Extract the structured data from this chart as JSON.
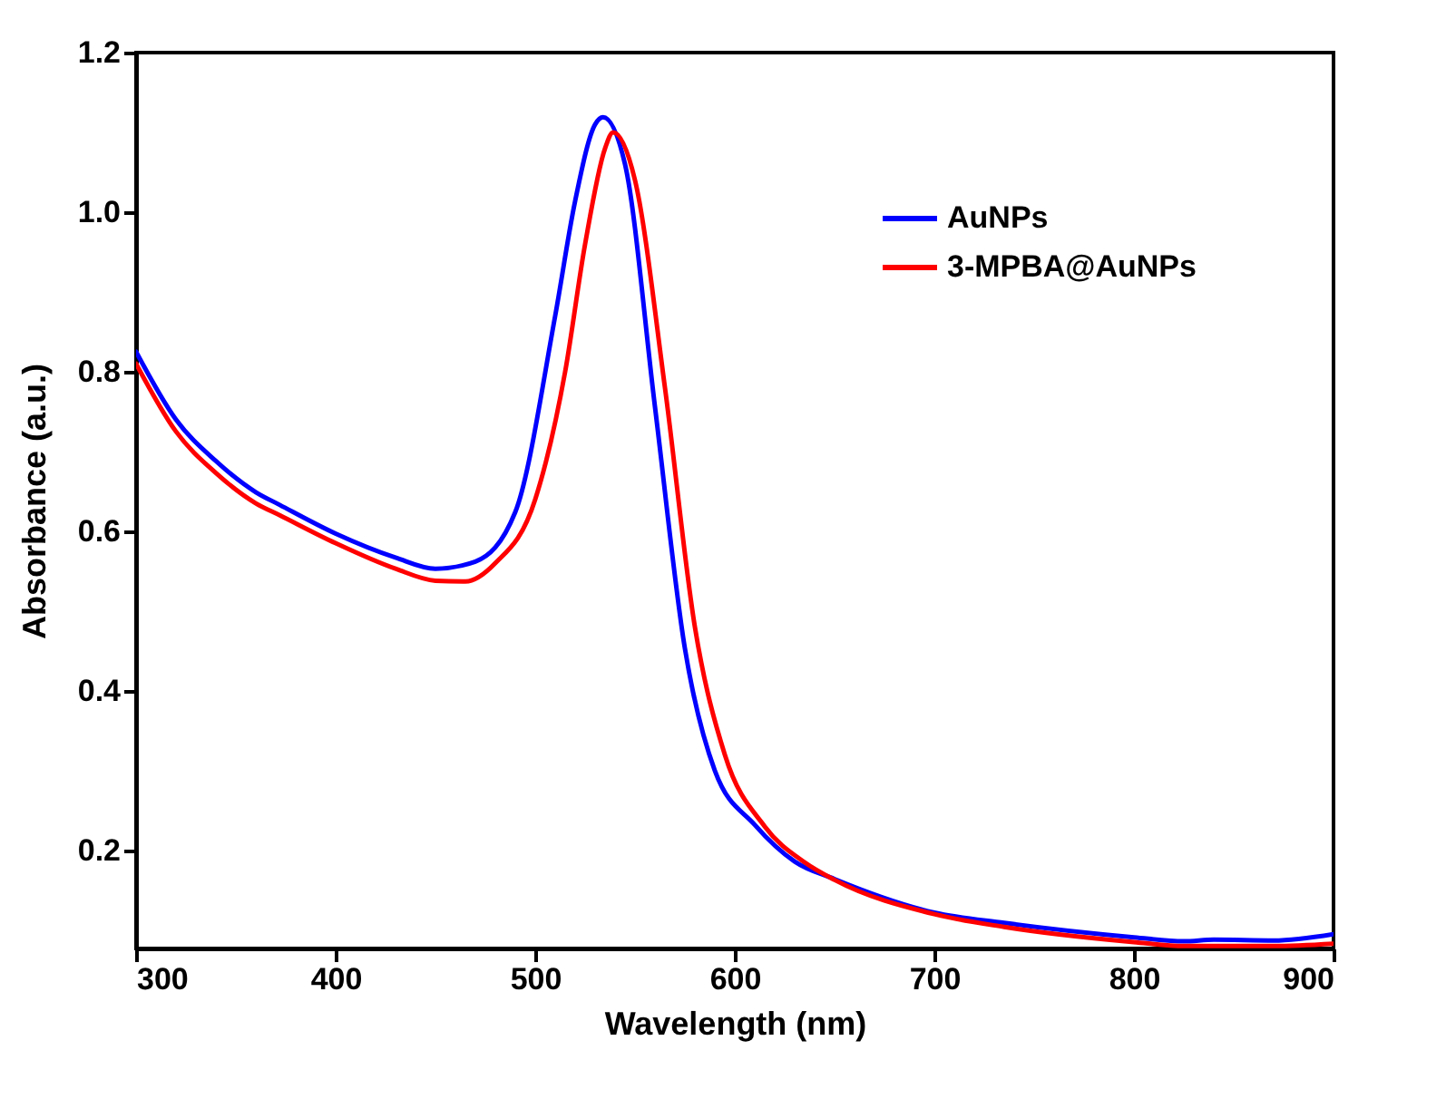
{
  "chart_data": {
    "type": "line",
    "xlabel": "Wavelength (nm)",
    "ylabel": "Absorbance (a.u.)",
    "xlim": [
      300,
      900
    ],
    "xticks": [
      300,
      400,
      500,
      600,
      700,
      800,
      900
    ],
    "ylim": [
      0.077,
      1.2
    ],
    "yticks": [
      {
        "value": 0.2,
        "label": "0.2"
      },
      {
        "value": 0.4,
        "label": "0.4"
      },
      {
        "value": 0.6,
        "label": "0.6"
      },
      {
        "value": 0.8,
        "label": "0.8"
      },
      {
        "value": 1,
        "label": "1.0"
      },
      {
        "value": 1.2,
        "label": "1.2"
      }
    ],
    "grid": false,
    "legend": "top right",
    "line_style": "solid",
    "marker": "none",
    "series": [
      {
        "name": "AuNPs",
        "color": "#0000ff",
        "x": [
          300,
          320,
          340,
          360,
          372,
          400,
          430,
          450,
          470,
          490,
          510,
          520,
          530,
          534,
          545,
          560,
          575,
          590,
          610,
          630,
          650,
          700,
          735,
          800,
          825,
          840,
          870,
          900
        ],
        "values": [
          0.825,
          0.74,
          0.688,
          0.649,
          0.633,
          0.597,
          0.567,
          0.553,
          0.562,
          0.624,
          0.87,
          1.014,
          1.11,
          1.119,
          1.06,
          0.756,
          0.453,
          0.3,
          0.232,
          0.186,
          0.164,
          0.122,
          0.109,
          0.091,
          0.086,
          0.088,
          0.087,
          0.095
        ]
      },
      {
        "name": "3-MPBA@AuNPs",
        "color": "#ff0000",
        "x": [
          300,
          320,
          340,
          360,
          372,
          400,
          430,
          450,
          465,
          480,
          500,
          515,
          525,
          535,
          539,
          550,
          565,
          580,
          595,
          615,
          635,
          650,
          700,
          735,
          800,
          825,
          870,
          900
        ],
        "values": [
          0.81,
          0.725,
          0.673,
          0.635,
          0.62,
          0.585,
          0.553,
          0.538,
          0.537,
          0.56,
          0.64,
          0.8,
          0.96,
          1.08,
          1.1,
          1.04,
          0.78,
          0.48,
          0.32,
          0.23,
          0.185,
          0.163,
          0.12,
          0.104,
          0.085,
          0.08,
          0.08,
          0.083
        ]
      }
    ]
  }
}
